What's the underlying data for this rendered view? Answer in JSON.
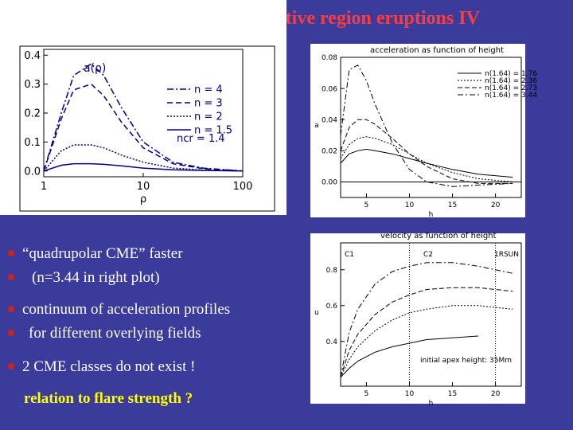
{
  "slide": {
    "title": "ctive region eruptions IV",
    "bullets": [
      "“quadrupolar CME” faster",
      "(n=3.44 in right plot)",
      "continuum of acceleration profiles",
      "for different overlying fields",
      "2 CME classes do not exist !"
    ],
    "footer": "relation to flare strength ?"
  },
  "chart_data": [
    {
      "type": "line",
      "title": "a(ρ)",
      "x_label": "ρ",
      "x_scale": "log",
      "xlim": [
        1,
        100
      ],
      "ylim": [
        -0.02,
        0.42
      ],
      "xticks": [
        1,
        10,
        100
      ],
      "yticks": [
        {
          "value": 0,
          "label": "0.0"
        },
        0.1,
        0.2,
        0.3,
        0.4
      ],
      "legend": "upper right",
      "annotations": [
        "ncr = 1.4"
      ],
      "x": [
        1,
        1.5,
        2,
        3,
        4,
        6,
        10,
        20,
        40,
        100
      ],
      "series": [
        {
          "name": "n = 4",
          "color": "#000080",
          "dash": "8 3 2 3",
          "values": [
            0,
            0.2,
            0.33,
            0.37,
            0.33,
            0.22,
            0.1,
            0.03,
            0.01,
            0
          ]
        },
        {
          "name": "n = 3",
          "color": "#000080",
          "dash": "7 4",
          "values": [
            0,
            0.18,
            0.28,
            0.3,
            0.26,
            0.17,
            0.08,
            0.025,
            0.008,
            0
          ]
        },
        {
          "name": "n = 2",
          "color": "#000080",
          "dash": "2 2",
          "values": [
            0,
            0.07,
            0.09,
            0.09,
            0.08,
            0.055,
            0.03,
            0.01,
            0.003,
            0
          ]
        },
        {
          "name": "n = 1.5",
          "color": "#000080",
          "dash": "none",
          "values": [
            0,
            0.02,
            0.025,
            0.025,
            0.023,
            0.018,
            0.01,
            0.004,
            0.002,
            0
          ]
        }
      ]
    },
    {
      "type": "line",
      "title": "acceleration as function of height",
      "x_label": "h",
      "y_label": "a",
      "xlim": [
        2,
        23
      ],
      "ylim": [
        -0.01,
        0.08
      ],
      "xticks": [
        5,
        10,
        15,
        20
      ],
      "yticks": [
        {
          "value": 0,
          "label": "0.00"
        },
        {
          "value": 0.02,
          "label": "0.02"
        },
        {
          "value": 0.04,
          "label": "0.04"
        },
        {
          "value": 0.06,
          "label": "0.06"
        },
        {
          "value": 0.08,
          "label": "0.08"
        }
      ],
      "zero_line": true,
      "legend": "upper right",
      "x": [
        2,
        3,
        4,
        5,
        6,
        8,
        10,
        12,
        15,
        18,
        22
      ],
      "series": [
        {
          "name": "n(1.64) = 1.76",
          "color": "#000000",
          "dash": "none",
          "values": [
            0.012,
            0.018,
            0.02,
            0.021,
            0.02,
            0.018,
            0.015,
            0.012,
            0.008,
            0.005,
            0.003
          ]
        },
        {
          "name": "n(1.64) = 2.36",
          "color": "#000000",
          "dash": "2 2",
          "values": [
            0.015,
            0.024,
            0.028,
            0.029,
            0.028,
            0.024,
            0.018,
            0.012,
            0.006,
            0.002,
            0
          ]
        },
        {
          "name": "n(1.64) = 2.73",
          "color": "#000000",
          "dash": "6 3",
          "values": [
            0.02,
            0.035,
            0.04,
            0.04,
            0.037,
            0.028,
            0.018,
            0.01,
            0.002,
            -0.001,
            -0.001
          ]
        },
        {
          "name": "n(1.64) = 3.44",
          "color": "#000000",
          "dash": "7 3 2 3",
          "values": [
            0.03,
            0.072,
            0.075,
            0.065,
            0.05,
            0.025,
            0.008,
            0,
            -0.003,
            -0.002,
            -0.001
          ]
        }
      ]
    },
    {
      "type": "line",
      "title": "velocity as function of height",
      "x_label": "h",
      "y_label": "u",
      "xlim": [
        2,
        23
      ],
      "ylim": [
        0.15,
        0.95
      ],
      "xticks": [
        5,
        10,
        15,
        20
      ],
      "yticks": [
        0.4,
        0.6,
        0.8
      ],
      "vlines": [
        10,
        20
      ],
      "annotations": [
        "C1",
        "C2",
        "1RSUN",
        "initial apex height: 35Mm"
      ],
      "x": [
        2,
        3,
        4,
        6,
        8,
        10,
        12,
        15,
        18,
        22
      ],
      "series": [
        {
          "color": "#000000",
          "dash": "none",
          "values": [
            0.2,
            0.25,
            0.29,
            0.34,
            0.37,
            0.39,
            0.41,
            0.42,
            0.43,
            null
          ]
        },
        {
          "color": "#000000",
          "dash": "2 2",
          "values": [
            0.2,
            0.3,
            0.37,
            0.46,
            0.52,
            0.56,
            0.58,
            0.6,
            0.6,
            0.58
          ]
        },
        {
          "color": "#000000",
          "dash": "6 3",
          "values": [
            0.2,
            0.35,
            0.44,
            0.55,
            0.62,
            0.66,
            0.69,
            0.7,
            0.7,
            0.68
          ]
        },
        {
          "color": "#000000",
          "dash": "7 3 2 3",
          "values": [
            0.2,
            0.45,
            0.58,
            0.72,
            0.79,
            0.82,
            0.84,
            0.84,
            0.82,
            0.78
          ]
        }
      ]
    }
  ]
}
